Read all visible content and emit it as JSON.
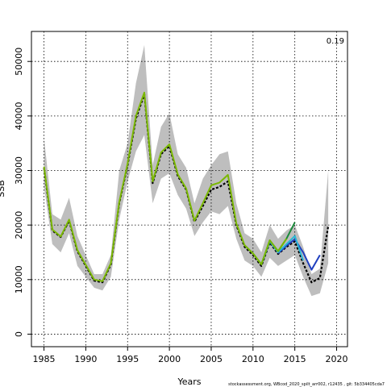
{
  "chart_data": {
    "type": "line",
    "title": "",
    "xlabel": "Years",
    "ylabel": "SSB",
    "xlim": [
      1983.5,
      2021.3
    ],
    "ylim": [
      -2300,
      55500
    ],
    "x_ticks": [
      1985,
      1990,
      1995,
      2000,
      2005,
      2010,
      2015,
      2020
    ],
    "y_ticks": [
      0,
      10000,
      20000,
      30000,
      40000,
      50000
    ],
    "grid": true,
    "legend": "none",
    "annotation": "0.19",
    "footer": "stockassessment.org, WBcod_2020_spilt_arr002, r12435 , git: 5b334405cda7",
    "confidence_band": {
      "x": [
        1985,
        1986,
        1987,
        1988,
        1989,
        1990,
        1991,
        1992,
        1993,
        1994,
        1995,
        1996,
        1997,
        1998,
        1999,
        2000,
        2001,
        2002,
        2003,
        2004,
        2005,
        2006,
        2007,
        2008,
        2009,
        2010,
        2011,
        2012,
        2013,
        2014,
        2015,
        2016,
        2017,
        2018,
        2019
      ],
      "upper": [
        36000,
        22000,
        21000,
        25000,
        18000,
        14500,
        11000,
        11000,
        14500,
        30000,
        35000,
        46000,
        53000,
        31000,
        38000,
        40500,
        33000,
        30500,
        24000,
        28500,
        31000,
        33000,
        33500,
        24000,
        18500,
        17500,
        15000,
        20000,
        17500,
        19000,
        20000,
        16000,
        11000,
        12000,
        30000
      ],
      "lower": [
        27000,
        16500,
        15000,
        18500,
        12500,
        10500,
        8500,
        8000,
        10500,
        21000,
        28000,
        33500,
        36500,
        24000,
        28500,
        29500,
        25500,
        23000,
        18000,
        20500,
        22500,
        22000,
        23500,
        17500,
        13500,
        12500,
        10500,
        14000,
        12500,
        13500,
        14500,
        10500,
        7000,
        7500,
        13000
      ]
    },
    "series": [
      {
        "name": "",
        "color": "#000000",
        "x": [
          1985,
          1986,
          1987,
          1988,
          1989,
          1990,
          1991,
          1992,
          1993,
          1994,
          1995,
          1996,
          1997,
          1998,
          1999,
          2000,
          2001,
          2002,
          2003,
          2004,
          2005,
          2006,
          2007,
          2008,
          2009,
          2010,
          2011,
          2012,
          2013,
          2014,
          2015,
          2016,
          2017,
          2018,
          2019
        ],
        "values": [
          30500,
          19000,
          17800,
          20800,
          15200,
          12500,
          9800,
          9500,
          12800,
          24000,
          31000,
          39500,
          44000,
          27700,
          33000,
          34500,
          29000,
          26500,
          20600,
          23500,
          26500,
          27000,
          28000,
          20000,
          16000,
          14500,
          12500,
          16800,
          14700,
          16000,
          17000,
          13000,
          9500,
          10300,
          19800
        ]
      },
      {
        "name": "",
        "color": "#1f3fbf",
        "x": [
          2013,
          2014,
          2015,
          2016,
          2017,
          2018
        ],
        "values": [
          14800,
          16200,
          17400,
          15000,
          11800,
          14500
        ]
      },
      {
        "name": "",
        "color": "#29b6d6",
        "x": [
          2011,
          2012,
          2013,
          2014,
          2015,
          2016
        ],
        "values": [
          12800,
          17000,
          15000,
          16500,
          18000,
          13500
        ]
      },
      {
        "name": "",
        "color": "#1a8a3a",
        "x": [
          2009,
          2010,
          2011,
          2012,
          2013,
          2014,
          2015
        ],
        "values": [
          16300,
          14800,
          12800,
          17200,
          15200,
          17500,
          20500
        ]
      },
      {
        "name": "",
        "color": "#7ab800",
        "x": [
          1985,
          1986,
          1987,
          1988,
          1989,
          1990,
          1991,
          1992,
          1993,
          1994,
          1995,
          1996,
          1997,
          1998,
          1999,
          2000,
          2001,
          2002,
          2003,
          2004,
          2005,
          2006,
          2007,
          2008,
          2009,
          2010,
          2011,
          2012,
          2013,
          2014
        ],
        "values": [
          30700,
          19200,
          17900,
          21000,
          15400,
          12700,
          10000,
          9700,
          13000,
          24200,
          31300,
          40000,
          44300,
          28000,
          33300,
          34800,
          29300,
          26700,
          20800,
          24000,
          27300,
          27800,
          29200,
          20300,
          16300,
          14800,
          12800,
          17200,
          15200,
          17500
        ]
      }
    ]
  }
}
